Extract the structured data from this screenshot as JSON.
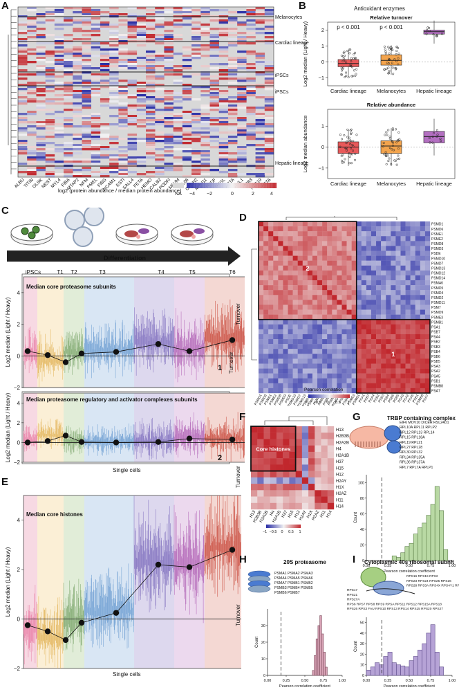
{
  "panels": {
    "A": {
      "letter": "A",
      "genes": [
        "ALBU",
        "TITIN",
        "GLSK",
        "NEST",
        "MYL4",
        "FIBA",
        "MTAP2",
        "NFM",
        "PMEL",
        "FIBG",
        "NCAM1",
        "ESTI",
        "SALL4",
        "FETA",
        "HEMO",
        "CALB2",
        "PODFI",
        "NEUM",
        "CL06",
        "CADH2",
        "MYH11",
        "PEDF",
        "PYGL",
        "ACTA",
        "MYL1",
        "TBB3",
        "K1C19",
        "ACTA"
      ],
      "row_labels": [
        "Melanocytes",
        "Cardiac lineage",
        "iPSCs",
        "iPSCs",
        "Hepatic lineage"
      ],
      "colorbar_title": "log2 (protein abundance / median protein abundance)",
      "colorbar_ticks": [
        "NA",
        "−4",
        "−2",
        "0",
        "2",
        "4"
      ],
      "colors": {
        "low": "#2b2fa6",
        "mid": "#f2f2f2",
        "high": "#c1272d",
        "na": "#d8d8d8"
      }
    },
    "B": {
      "letter": "B",
      "title": "Antioxidant enzymes",
      "sub1": "Relative turnover",
      "sub2": "Relative abundance",
      "ylabel1": "Log2 median (Light / Heavy)",
      "ylabel2": "Log2 median abundance",
      "pvals": [
        "p < 0.001",
        "p < 0.001"
      ],
      "categories": [
        "Cardiac lineage",
        "Melanocytes",
        "Hepatic lineage"
      ],
      "ticks1": [
        "2",
        "1",
        "0",
        "−1"
      ],
      "ticks2": [
        "1",
        "0",
        "−1"
      ],
      "colors": [
        "#e8595a",
        "#f3a44d",
        "#b36fc1"
      ]
    },
    "C": {
      "letter": "C",
      "arrow_label": "Differentiation",
      "stages": [
        "iPSCs",
        "T1",
        "T2",
        "T3",
        "T4",
        "T5",
        "T6"
      ],
      "sub1_title": "Median core proteasome subunits",
      "sub2_title": "Median proteasome regulatory and activator complexes subunits",
      "sub1_num": "1",
      "sub2_num": "2",
      "ylabel": "Log2 median (Light / Heavy)",
      "yticks": [
        "4",
        "2",
        "0",
        "−2"
      ],
      "xlabel": "Single cells",
      "side": "Turnover"
    },
    "D": {
      "letter": "D",
      "rows": [
        "PSMD1",
        "PSMD6",
        "PSME1",
        "PSME2",
        "PSMD8",
        "PSMD3",
        "PSDE",
        "PSMD10",
        "PSMD7",
        "PSMD13",
        "PSMD12",
        "PSMD14",
        "PSMA6",
        "PSMD5",
        "PSMD4",
        "PSMD2",
        "PSMD11",
        "PSM7",
        "PSMD9",
        "PSME3",
        "PSMB1",
        "PSA1",
        "PSB7",
        "PSA4",
        "PSB2",
        "PSB3",
        "PSB4",
        "PSB6",
        "PSB5",
        "PSA3",
        "PSA2",
        "PSA5",
        "PSB1",
        "PSMB8",
        "PSA7"
      ],
      "cluster_labels": [
        "2",
        "1"
      ],
      "colorbar_title": "Pearson correlation",
      "colorbar_ticks": [
        "−1",
        "−0.5",
        "0",
        "0.5",
        "1"
      ],
      "side": "Turnover"
    },
    "E": {
      "letter": "E",
      "title": "Median core histones",
      "ylabel": "Log2 median (Light / Heavy)",
      "yticks": [
        "4",
        "2",
        "0",
        "−2"
      ],
      "xlabel": "Single cells"
    },
    "F": {
      "letter": "F",
      "rows": [
        "H13",
        "H2B3B",
        "H2A2B",
        "H4",
        "H2A1B",
        "H37",
        "H15",
        "H12",
        "H2AY",
        "H1X",
        "H2AZ",
        "H11",
        "H14"
      ],
      "box_label": "Core histones",
      "colorbar_ticks": [
        "−1",
        "−0.5",
        "0",
        "0.5",
        "1"
      ],
      "colorbar_title": "Pearson correlation",
      "side": "Turnover"
    },
    "G": {
      "letter": "G",
      "title": "TRBP containing complex",
      "proteins": [
        "EIF6 MOV10 DICER RSL24D1",
        "RPL10A RPL11 RPLP2",
        "RPL12 RPL13 RPL14",
        "RPL15 RPL18A",
        "RPL19 RPL21",
        "RPL27 RPL28",
        "RPL30 RPL32",
        "RPL34 RPL35A",
        "RPL36 RPL37A",
        "RPL7 RPL7A RPLP1"
      ],
      "ylabel": "Count",
      "yticks": [
        "100",
        "80",
        "60",
        "40",
        "20",
        "0"
      ],
      "xticks": [
        "0.00",
        "0.25",
        "0.50",
        "0.75",
        "1.00"
      ],
      "xlabel": "Pearson correlation coefficient"
    },
    "H": {
      "letter": "H",
      "title": "20S proteasome",
      "proteins": [
        "PSMA1 PSMA2 PSMA3",
        "PSMA4 PSMA5 PSMA6",
        "PSMA7 PSMB1 PSMB2",
        "PSMB3 PSMB4 PSMB5",
        "PSMB6 PSMB7"
      ],
      "ylabel": "Count",
      "yticks": [
        "30",
        "20",
        "10",
        "0"
      ],
      "xticks": [
        "0.00",
        "0.25",
        "0.50",
        "0.75",
        "1.00"
      ],
      "xlabel": "Pearson correlation coefficient",
      "side": "Turnover"
    },
    "I": {
      "letter": "I",
      "title": "Cytoplasmic 40s ribosomal subnit",
      "proteins": [
        "RPS17",
        "RPS21",
        "RPS27A",
        "RPS6 RPS7 RPS8 RPS9 RPSA RPS11 RPS12 RPS15A RPS18",
        "RPS26 RPS3 FAU RPS10 RPS13 RPS14 RPS15 RPS20 RPS27"
      ],
      "proteins_right": [
        "RPS16 RPS19 RPS2",
        "RPS23 RPS24 RPS25 RPS26",
        "RPS28 RPS3A RPS4X RPS4Y1 RPS5"
      ],
      "ylabel": "Count",
      "yticks": [
        "50",
        "40",
        "30",
        "20",
        "10",
        "0"
      ],
      "xticks": [
        "0.00",
        "0.25",
        "0.50",
        "0.75",
        "1.00"
      ],
      "xlabel": "Pearson correlation coefficient"
    }
  },
  "chart_data": [
    {
      "type": "box",
      "title": "Relative turnover",
      "categories": [
        "Cardiac lineage",
        "Melanocytes",
        "Hepatic lineage"
      ],
      "medians": [
        -0.1,
        0.1,
        1.9
      ],
      "q1": [
        -0.3,
        -0.2,
        1.75
      ],
      "q3": [
        0.15,
        0.45,
        2.0
      ],
      "ylabel": "Log2 median (Light / Heavy)",
      "ylim": [
        -1.5,
        2.5
      ]
    },
    {
      "type": "box",
      "title": "Relative abundance",
      "categories": [
        "Cardiac lineage",
        "Melanocytes",
        "Hepatic lineage"
      ],
      "medians": [
        0.0,
        0.05,
        0.5
      ],
      "q1": [
        -0.3,
        -0.3,
        0.2
      ],
      "q3": [
        0.25,
        0.3,
        0.75
      ],
      "ylabel": "Log2 median abundance",
      "ylim": [
        -1.5,
        1.8
      ]
    },
    {
      "type": "line",
      "title": "Median core proteasome subunits",
      "categories": [
        "iPSCs",
        "iPSCs",
        "T1",
        "T2",
        "T3",
        "T4",
        "T5",
        "T6"
      ],
      "values": [
        0.3,
        0.05,
        -0.4,
        0.15,
        0.25,
        0.75,
        0.3,
        1.0
      ],
      "ylim": [
        -2,
        5
      ]
    },
    {
      "type": "line",
      "title": "Median proteasome regulatory and activator complexes subunits",
      "categories": [
        "iPSCs",
        "iPSCs",
        "T1",
        "T2",
        "T3",
        "T4",
        "T5",
        "T6"
      ],
      "values": [
        0.0,
        0.15,
        0.7,
        0.05,
        0.0,
        0.05,
        0.4,
        0.3
      ],
      "ylim": [
        -2,
        5
      ]
    },
    {
      "type": "line",
      "title": "Median core histones",
      "categories": [
        "iPSCs",
        "iPSCs",
        "T1",
        "T2",
        "T3",
        "T4",
        "T5",
        "T6"
      ],
      "values": [
        -0.25,
        -0.5,
        -0.85,
        -0.15,
        0.25,
        2.2,
        2.1,
        2.8
      ],
      "ylim": [
        -2,
        5
      ]
    },
    {
      "type": "bar",
      "title": "TRBP containing complex",
      "bins": [
        0.3,
        0.35,
        0.4,
        0.45,
        0.5,
        0.55,
        0.6,
        0.65,
        0.7,
        0.75,
        0.8,
        0.85,
        0.9
      ],
      "values": [
        6,
        4,
        10,
        18,
        22,
        34,
        42,
        48,
        58,
        72,
        95,
        64,
        14
      ],
      "xlim": [
        0,
        1
      ],
      "ylim": [
        0,
        110
      ]
    },
    {
      "type": "bar",
      "title": "20S proteasome",
      "bins": [
        0.6,
        0.625,
        0.65,
        0.675,
        0.7,
        0.725,
        0.75,
        0.775
      ],
      "values": [
        3,
        12,
        22,
        30,
        36,
        25,
        14,
        5
      ],
      "xlim": [
        0,
        1
      ],
      "ylim": [
        0,
        40
      ]
    },
    {
      "type": "bar",
      "title": "Cytoplasmic 40s ribosomal subnit",
      "bins": [
        0.0,
        0.05,
        0.1,
        0.15,
        0.2,
        0.25,
        0.3,
        0.35,
        0.4,
        0.45,
        0.5,
        0.55,
        0.6,
        0.65,
        0.7,
        0.75,
        0.8,
        0.85
      ],
      "values": [
        5,
        8,
        12,
        10,
        18,
        22,
        12,
        10,
        9,
        8,
        14,
        18,
        24,
        30,
        40,
        48,
        22,
        8
      ],
      "xlim": [
        0,
        1
      ],
      "ylim": [
        0,
        55
      ]
    }
  ]
}
